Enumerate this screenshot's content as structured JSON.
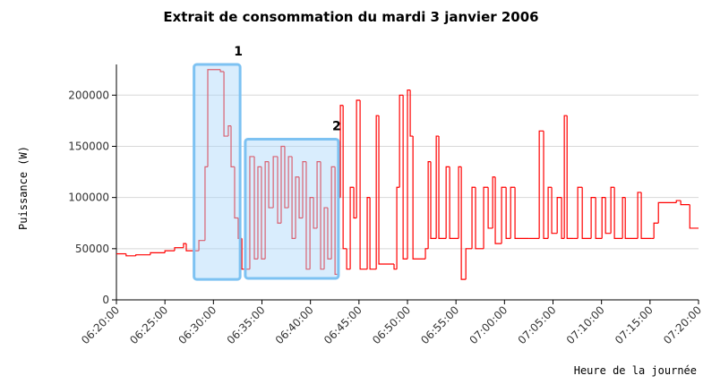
{
  "chart_data": {
    "type": "step",
    "title": "Extrait de consommation du mardi 3 janvier 2006",
    "x_label": "Heure de la journée",
    "y_label": "Puissance (W)",
    "xlim": [
      "06:20:00",
      "07:20:00"
    ],
    "xticks": [
      "06:20:00",
      "06:25:00",
      "06:30:00",
      "06:35:00",
      "06:40:00",
      "06:45:00",
      "06:50:00",
      "06:55:00",
      "07:00:00",
      "07:05:00",
      "07:10:00",
      "07:15:00",
      "07:20:00"
    ],
    "ylim": [
      0,
      230000
    ],
    "yticks": [
      0,
      50000,
      100000,
      150000,
      200000
    ],
    "grid": true,
    "series": [
      {
        "name": "Puissance",
        "color": "#ff0000",
        "x": [
          "06:20:00",
          "06:21:00",
          "06:22:00",
          "06:23:30",
          "06:25:00",
          "06:26:00",
          "06:26:55",
          "06:27:12",
          "06:28:30",
          "06:29:08",
          "06:29:25",
          "06:30:43",
          "06:31:05",
          "06:31:32",
          "06:31:49",
          "06:32:11",
          "06:32:33",
          "06:32:56",
          "06:33:45",
          "06:34:13",
          "06:34:35",
          "06:34:57",
          "06:35:20",
          "06:35:42",
          "06:36:10",
          "06:36:37",
          "06:36:59",
          "06:37:21",
          "06:37:44",
          "06:38:06",
          "06:38:28",
          "06:38:50",
          "06:39:12",
          "06:39:34",
          "06:39:57",
          "06:40:19",
          "06:40:41",
          "06:41:03",
          "06:41:25",
          "06:41:47",
          "06:42:10",
          "06:42:32",
          "06:42:54",
          "06:43:05",
          "06:43:22",
          "06:43:44",
          "06:44:06",
          "06:44:28",
          "06:44:45",
          "06:45:07",
          "06:45:51",
          "06:46:08",
          "06:46:47",
          "06:47:03",
          "06:48:37",
          "06:48:54",
          "06:49:11",
          "06:49:33",
          "06:50:00",
          "06:50:17",
          "06:50:34",
          "06:51:51",
          "06:52:08",
          "06:52:24",
          "06:52:58",
          "06:53:14",
          "06:53:59",
          "06:54:21",
          "06:55:16",
          "06:55:33",
          "06:56:01",
          "06:56:39",
          "06:57:01",
          "06:57:51",
          "06:58:19",
          "06:58:47",
          "06:59:03",
          "06:59:42",
          "07:00:10",
          "07:00:38",
          "07:01:05",
          "07:02:28",
          "07:03:35",
          "07:04:02",
          "07:04:30",
          "07:04:52",
          "07:05:26",
          "07:05:53",
          "07:06:10",
          "07:06:27",
          "07:07:05",
          "07:07:33",
          "07:08:01",
          "07:08:56",
          "07:09:24",
          "07:10:03",
          "07:10:25",
          "07:10:58",
          "07:11:20",
          "07:12:10",
          "07:12:27",
          "07:13:44",
          "07:14:06",
          "07:15:07",
          "07:15:24",
          "07:15:52",
          "07:17:43",
          "07:18:10",
          "07:19:06",
          "07:20:00"
        ],
        "values": [
          45000,
          43000,
          44000,
          46000,
          48000,
          51000,
          55000,
          48000,
          58000,
          130000,
          225000,
          223000,
          160000,
          170000,
          130000,
          80000,
          60000,
          30000,
          140000,
          40000,
          130000,
          40000,
          135000,
          90000,
          140000,
          75000,
          150000,
          90000,
          140000,
          60000,
          120000,
          80000,
          135000,
          30000,
          100000,
          70000,
          135000,
          30000,
          90000,
          40000,
          130000,
          25000,
          100000,
          190000,
          50000,
          30000,
          110000,
          80000,
          195000,
          30000,
          100000,
          30000,
          180000,
          35000,
          30000,
          110000,
          200000,
          40000,
          205000,
          160000,
          40000,
          50000,
          135000,
          60000,
          160000,
          60000,
          130000,
          60000,
          130000,
          20000,
          50000,
          110000,
          50000,
          110000,
          70000,
          120000,
          55000,
          110000,
          60000,
          110000,
          60000,
          60000,
          165000,
          60000,
          110000,
          65000,
          100000,
          60000,
          180000,
          60000,
          60000,
          110000,
          60000,
          100000,
          60000,
          100000,
          65000,
          110000,
          60000,
          100000,
          60000,
          105000,
          60000,
          60000,
          75000,
          95000,
          97000,
          93000,
          70000,
          70000
        ]
      }
    ],
    "annotations": [
      {
        "label": "1",
        "x": [
          "06:28:00",
          "06:32:45"
        ],
        "y": [
          20000,
          230000
        ]
      },
      {
        "label": "2",
        "x": [
          "06:33:17",
          "06:42:53"
        ],
        "y": [
          21000,
          157000
        ]
      }
    ]
  }
}
